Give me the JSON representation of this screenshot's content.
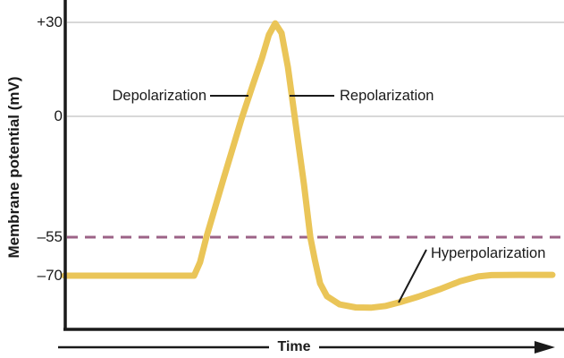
{
  "y_axis": {
    "title": "Membrane potential (mV)"
  },
  "x_axis": {
    "title": "Time"
  },
  "colors": {
    "curve": "#EAC558",
    "threshold_dash": "#9C6387",
    "gridline": "#D8D8D8",
    "axis": "#1A1A1A",
    "text": "#1A1A1A",
    "background": "#FFFFFF"
  },
  "chart_data": {
    "type": "line",
    "xlabel": "Time",
    "ylabel": "Membrane potential (mV)",
    "x_units": "arbitrary time units (0–100)",
    "y_ticks": [
      30,
      0,
      -55,
      -70
    ],
    "y_tick_labels": [
      "+30",
      "0",
      "–55",
      "–70"
    ],
    "ylim": [
      -85,
      35
    ],
    "grid_y_values": [
      30,
      0
    ],
    "y_axis_note": "schematic (non-linear) spacing as drawn",
    "threshold": {
      "mv": -55,
      "style": "dashed"
    },
    "resting_potential_mv": -70,
    "peak_mv": 30,
    "undershoot_mv": -82.5,
    "annotations": [
      {
        "text": "Depolarization",
        "phase": "rising"
      },
      {
        "text": "Repolarization",
        "phase": "falling"
      },
      {
        "text": "Hyperpolarization",
        "phase": "undershoot"
      }
    ],
    "series": [
      {
        "name": "Membrane potential",
        "points": [
          [
            0,
            -70
          ],
          [
            19.8,
            -70
          ],
          [
            26.6,
            -70
          ],
          [
            27.8,
            -64.8
          ],
          [
            29.1,
            -55
          ],
          [
            32.6,
            -28.5
          ],
          [
            36.3,
            -1.2
          ],
          [
            38.6,
            10
          ],
          [
            40.5,
            18.6
          ],
          [
            41.9,
            26
          ],
          [
            43.2,
            29.7
          ],
          [
            44.5,
            26.6
          ],
          [
            45.8,
            15.7
          ],
          [
            47.3,
            -2
          ],
          [
            49.1,
            -31
          ],
          [
            50.4,
            -55
          ],
          [
            51.3,
            -63.6
          ],
          [
            52.4,
            -73
          ],
          [
            53.8,
            -78
          ],
          [
            56.4,
            -81.2
          ],
          [
            59.7,
            -82.4
          ],
          [
            62.8,
            -82.5
          ],
          [
            65.9,
            -81.8
          ],
          [
            68.7,
            -80.4
          ],
          [
            72.5,
            -78.2
          ],
          [
            76.9,
            -75.3
          ],
          [
            81.1,
            -72.2
          ],
          [
            84.8,
            -70.3
          ],
          [
            87.5,
            -69.8
          ],
          [
            93,
            -69.7
          ],
          [
            100,
            -69.7
          ]
        ]
      }
    ]
  }
}
